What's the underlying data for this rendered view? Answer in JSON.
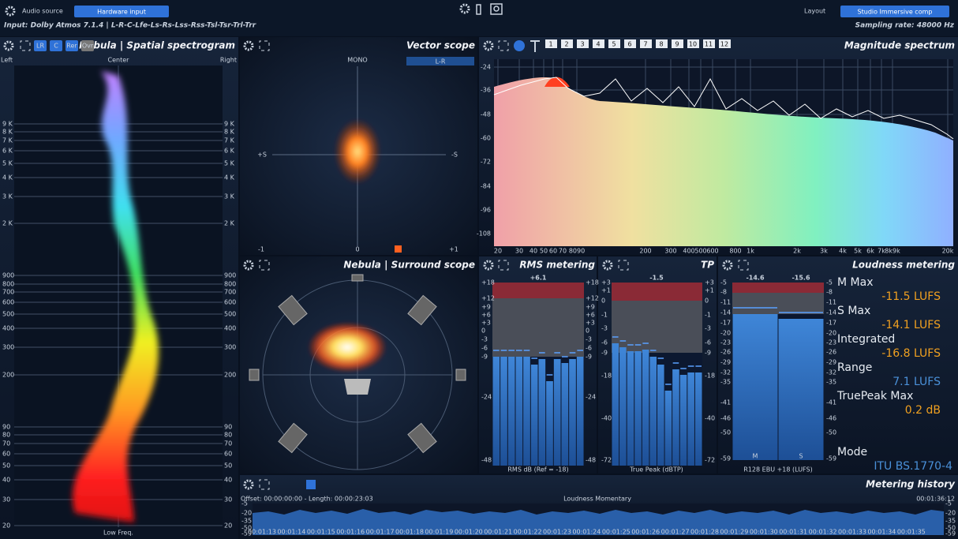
{
  "top_bar": {
    "audio_source_label": "Audio source",
    "input_button": "Hardware input",
    "layout_label": "Layout",
    "layout_button": "Studio Immersive comp",
    "input_info": "Input: Dolby Atmos 7.1.4 | L-R-C-Lfe-Ls-Rs-Lss-Rss-Tsl-Tsr-Trl-Trr",
    "sampling_rate": "Sampling rate: 48000 Hz"
  },
  "spatial_spectrogram": {
    "title": "Nebula | Spatial spectrogram",
    "buttons": [
      "LR",
      "C",
      "Rer",
      "Ovr"
    ],
    "left": "Left",
    "center": "Center",
    "right": "Right",
    "frequency_labels": [
      "9 K",
      "8 K",
      "7 K",
      "6 K",
      "5 K",
      "4 K",
      "3 K",
      "2 K",
      "900",
      "800",
      "700",
      "600",
      "500",
      "400",
      "300",
      "200",
      "90",
      "80",
      "70",
      "60",
      "50",
      "40",
      "30",
      "20"
    ],
    "footer": "Low Freq."
  },
  "vector_scope": {
    "title": "Vector scope",
    "mono": "MONO",
    "mode": "L-R",
    "plus_s": "+S",
    "minus_s": "-S",
    "x_labels": [
      "-1",
      "0",
      "+1"
    ]
  },
  "magnitude_spectrum": {
    "title": "Magnitude spectrum",
    "channels": [
      "1",
      "2",
      "3",
      "4",
      "5",
      "6",
      "7",
      "8",
      "9",
      "10",
      "11",
      "12"
    ],
    "y_labels": [
      "-24",
      "-36",
      "-48",
      "-60",
      "-72",
      "-84",
      "-96",
      "-108"
    ],
    "x_labels": [
      "20",
      "30",
      "40",
      "50",
      "60",
      "70",
      "8090",
      "200",
      "300",
      "400",
      "500",
      "600",
      "800",
      "1k",
      "2k",
      "3k",
      "4k",
      "5k",
      "6k",
      "7k",
      "8k9k",
      "20k"
    ]
  },
  "surround_scope": {
    "title": "Nebula | Surround scope"
  },
  "rms_metering": {
    "title": "RMS metering",
    "peak": "+6.1",
    "scale": [
      "+18",
      "+12",
      "+9",
      "+6",
      "+3",
      "0",
      "-3",
      "-6",
      "-9",
      "-24",
      "-48"
    ],
    "caption": "RMS dB (Ref = -18)"
  },
  "true_peak": {
    "title": "TP",
    "peak": "-1.5",
    "scale": [
      "+3",
      "+1",
      "0",
      "-1",
      "-3",
      "-6",
      "-9",
      "-18",
      "-40",
      "-72"
    ],
    "caption": "True Peak (dBTP)"
  },
  "loudness_metering": {
    "title": "Loudness metering",
    "peaks": [
      "-14.6",
      "-15.6"
    ],
    "meters": [
      "M",
      "S"
    ],
    "scale": [
      "-5",
      "-8",
      "-11",
      "-14",
      "-17",
      "-20",
      "-23",
      "-26",
      "-29",
      "-32",
      "-35",
      "-41",
      "-46",
      "-50",
      "-59"
    ],
    "caption": "R128 EBU +18 (LUFS)",
    "stats": [
      {
        "label": "M Max",
        "value": "-11.5 LUFS"
      },
      {
        "label": "S Max",
        "value": "-14.1 LUFS"
      },
      {
        "label": "Integrated",
        "value": "-16.8 LUFS"
      },
      {
        "label": "Range",
        "value": "7.1 LUFS"
      },
      {
        "label": "TruePeak Max",
        "value": "0.2 dB"
      }
    ],
    "mode_label": "Mode",
    "mode": "ITU BS.1770-4"
  },
  "metering_history": {
    "title": "Metering history",
    "offset": "Offset: 00:00:00:00 - Length: 00:00:23:03",
    "label": "Loudness Momentary",
    "end_time": "00:01:36:12",
    "scale": [
      "-5",
      "-20",
      "-35",
      "-50",
      "-59"
    ],
    "times": [
      "00:01:13",
      "00:01:14",
      "00:01:15",
      "00:01:16",
      "00:01:17",
      "00:01:18",
      "00:01:19",
      "00:01:20",
      "00:01:21",
      "00:01:22",
      "00:01:23",
      "00:01:24",
      "00:01:25",
      "00:01:26",
      "00:01:27",
      "00:01:28",
      "00:01:29",
      "00:01:30",
      "00:01:31",
      "00:01:32",
      "00:01:33",
      "00:01:34",
      "00:01:35"
    ]
  }
}
